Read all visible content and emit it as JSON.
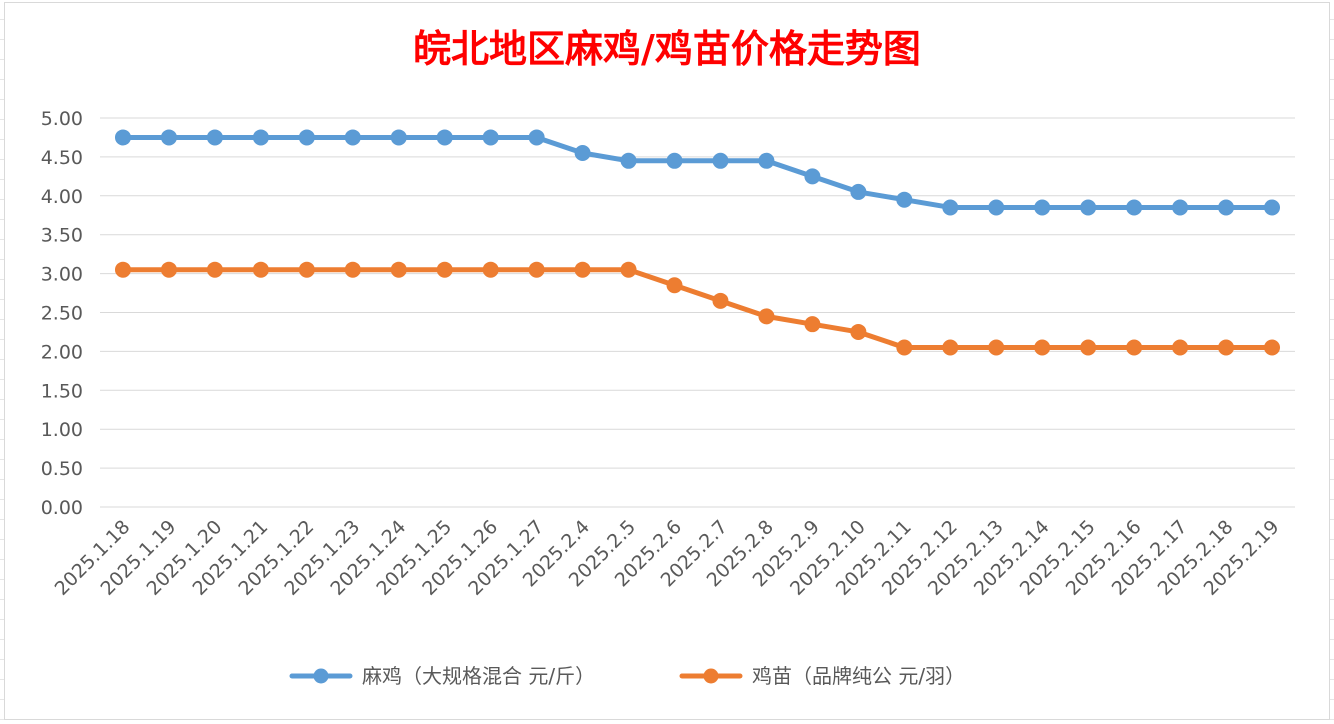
{
  "chart_data": {
    "type": "line",
    "title": "皖北地区麻鸡/鸡苗价格走势图",
    "categories": [
      "2025.1.18",
      "2025.1.19",
      "2025.1.20",
      "2025.1.21",
      "2025.1.22",
      "2025.1.23",
      "2025.1.24",
      "2025.1.25",
      "2025.1.26",
      "2025.1.27",
      "2025.2.4",
      "2025.2.5",
      "2025.2.6",
      "2025.2.7",
      "2025.2.8",
      "2025.2.9",
      "2025.2.10",
      "2025.2.11",
      "2025.2.12",
      "2025.2.13",
      "2025.2.14",
      "2025.2.15",
      "2025.2.16",
      "2025.2.17",
      "2025.2.18",
      "2025.2.19"
    ],
    "y_ticks": [
      "0.00",
      "0.50",
      "1.00",
      "1.50",
      "2.00",
      "2.50",
      "3.00",
      "3.50",
      "4.00",
      "4.50",
      "5.00"
    ],
    "ylim": [
      0,
      5
    ],
    "grid": true,
    "legend_position": "bottom",
    "series": [
      {
        "name": "麻鸡（大规格混合 元/斤）",
        "color": "#5b9bd5",
        "values": [
          4.75,
          4.75,
          4.75,
          4.75,
          4.75,
          4.75,
          4.75,
          4.75,
          4.75,
          4.75,
          4.55,
          4.45,
          4.45,
          4.45,
          4.45,
          4.25,
          4.05,
          3.95,
          3.85,
          3.85,
          3.85,
          3.85,
          3.85,
          3.85,
          3.85,
          3.85
        ]
      },
      {
        "name": "鸡苗（品牌纯公 元/羽）",
        "color": "#ed7d31",
        "values": [
          3.05,
          3.05,
          3.05,
          3.05,
          3.05,
          3.05,
          3.05,
          3.05,
          3.05,
          3.05,
          3.05,
          3.05,
          2.85,
          2.65,
          2.45,
          2.35,
          2.25,
          2.05,
          2.05,
          2.05,
          2.05,
          2.05,
          2.05,
          2.05,
          2.05,
          2.05
        ]
      }
    ]
  }
}
